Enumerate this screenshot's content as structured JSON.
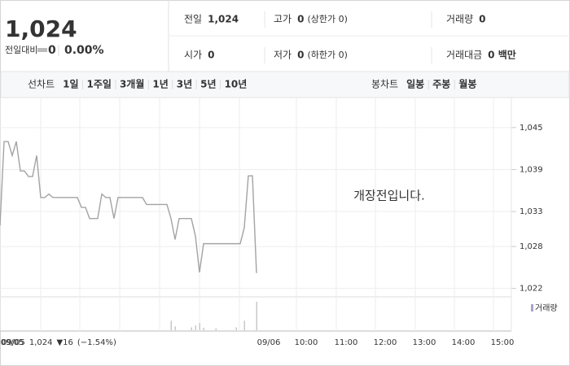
{
  "header": {
    "price": "1,024",
    "change_label": "전일대비",
    "change": "0",
    "change_rate": "0.00%",
    "info": [
      [
        {
          "label": "전일",
          "value": "1,024"
        },
        {
          "label": "고가",
          "value": "0",
          "note": "(상한가 0)"
        },
        {
          "label": "거래량",
          "value": "0"
        }
      ],
      [
        {
          "label": "시가",
          "value": "0"
        },
        {
          "label": "저가",
          "value": "0",
          "note": "(하한가 0)"
        },
        {
          "label": "거래대금",
          "value": "0 백만"
        }
      ]
    ]
  },
  "tabs": {
    "line_label": "선차트",
    "line_tabs": [
      "1일",
      "1주일",
      "3개월",
      "1년",
      "3년",
      "5년",
      "10년"
    ],
    "candle_label": "봉차트",
    "candle_tabs": [
      "일봉",
      "주봉",
      "월봉"
    ]
  },
  "chart_data": {
    "type": "line",
    "color": "#a3a3a3",
    "message": "개장전입니다.",
    "x_labels": [
      "09/05",
      "09/06",
      "10:00",
      "11:00",
      "12:00",
      "13:00",
      "14:00",
      "15:00"
    ],
    "summary": {
      "date": "09/05",
      "close": "1,024",
      "change": "▼16",
      "rate": "(−1.54%)"
    },
    "ylim": [
      1020.8,
      1048.7
    ],
    "yticks": [
      {
        "value": 1045,
        "label": "1,045"
      },
      {
        "value": 1039,
        "label": "1,039"
      },
      {
        "value": 1033,
        "label": "1,033"
      },
      {
        "value": 1028,
        "label": "1,028"
      },
      {
        "value": 1022,
        "label": "1,022"
      }
    ],
    "grid": true,
    "series": [
      {
        "name": "거래량",
        "color": "#a9a4c8",
        "values": [
          1031,
          1043,
          1043,
          1041,
          1043,
          1038.8,
          1038.8,
          1038,
          1038,
          1041,
          1035,
          1035,
          1035.5,
          1035,
          1035,
          1035,
          1035,
          1035,
          1035,
          1035,
          1033.6,
          1033.6,
          1032,
          1032,
          1032,
          1035.5,
          1035,
          1035,
          1032,
          1035,
          1035,
          1035,
          1035,
          1035,
          1035,
          1035,
          1034,
          1034,
          1034,
          1034,
          1034,
          1034,
          1032,
          1029,
          1032,
          1032,
          1032,
          1032,
          1029.5,
          1024.3,
          1028.4,
          1028.4,
          1028.4,
          1028.4,
          1028.4,
          1028.4,
          1028.4,
          1028.4,
          1028.4,
          1028.4,
          1030.7,
          1038.1,
          1038.1,
          1024.2
        ],
        "volume": [
          0,
          0,
          0,
          0,
          0,
          0,
          0,
          0,
          0,
          0,
          0,
          0,
          0,
          0,
          0,
          0,
          0,
          0,
          0,
          0,
          0,
          0,
          0,
          0,
          0,
          0,
          0,
          0,
          0,
          0,
          0,
          0,
          0,
          0,
          0,
          0,
          0,
          0,
          0,
          0,
          0,
          0,
          20,
          8,
          0,
          0,
          0,
          6,
          10,
          15,
          5,
          0,
          0,
          4,
          0,
          0,
          0,
          0,
          6,
          0,
          20,
          0,
          0,
          60
        ]
      }
    ]
  }
}
